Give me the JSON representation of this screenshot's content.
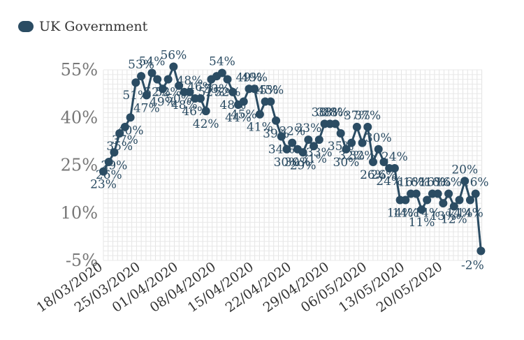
{
  "legend": {
    "label": "UK Government",
    "color": "#2b4c63"
  },
  "chart_data": {
    "type": "line",
    "title": "",
    "xlabel": "",
    "ylabel": "",
    "y_ticks": [
      {
        "value": 55,
        "label": "55%"
      },
      {
        "value": 40,
        "label": "40%"
      },
      {
        "value": 25,
        "label": "25%"
      },
      {
        "value": 10,
        "label": "10%"
      },
      {
        "value": -5,
        "label": "-5%"
      }
    ],
    "ylim": [
      -5,
      55
    ],
    "x_tick_labels": [
      "18/03/2020",
      "25/03/2020",
      "01/04/2020",
      "08/04/2020",
      "15/04/2020",
      "22/04/2020",
      "29/04/2020",
      "06/05/2020",
      "13/05/2020",
      "20/05/2020"
    ],
    "grid": true,
    "legend_position": "top-left",
    "series": [
      {
        "name": "UK Government",
        "color": "#2b4c63",
        "points": [
          {
            "x": "18/03/2020",
            "y": 23
          },
          {
            "x": "19/03/2020",
            "y": 26
          },
          {
            "x": "20/03/2020",
            "y": 29
          },
          {
            "x": "21/03/2020",
            "y": 35
          },
          {
            "x": "22/03/2020",
            "y": 37
          },
          {
            "x": "23/03/2020",
            "y": 40
          },
          {
            "x": "24/03/2020",
            "y": 51
          },
          {
            "x": "25/03/2020",
            "y": 53
          },
          {
            "x": "26/03/2020",
            "y": 47
          },
          {
            "x": "27/03/2020",
            "y": 54
          },
          {
            "x": "28/03/2020",
            "y": 52
          },
          {
            "x": "29/03/2020",
            "y": 49
          },
          {
            "x": "30/03/2020",
            "y": 52
          },
          {
            "x": "31/03/2020",
            "y": 56
          },
          {
            "x": "01/04/2020",
            "y": 50
          },
          {
            "x": "02/04/2020",
            "y": 48
          },
          {
            "x": "03/04/2020",
            "y": 48
          },
          {
            "x": "04/04/2020",
            "y": 46
          },
          {
            "x": "05/04/2020",
            "y": 46
          },
          {
            "x": "06/04/2020",
            "y": 42
          },
          {
            "x": "07/04/2020",
            "y": 52
          },
          {
            "x": "08/04/2020",
            "y": 53
          },
          {
            "x": "09/04/2020",
            "y": 54
          },
          {
            "x": "10/04/2020",
            "y": 52
          },
          {
            "x": "11/04/2020",
            "y": 48
          },
          {
            "x": "12/04/2020",
            "y": 44
          },
          {
            "x": "13/04/2020",
            "y": 45
          },
          {
            "x": "14/04/2020",
            "y": 49
          },
          {
            "x": "15/04/2020",
            "y": 49
          },
          {
            "x": "16/04/2020",
            "y": 41
          },
          {
            "x": "17/04/2020",
            "y": 45
          },
          {
            "x": "18/04/2020",
            "y": 45
          },
          {
            "x": "19/04/2020",
            "y": 39
          },
          {
            "x": "20/04/2020",
            "y": 34
          },
          {
            "x": "21/04/2020",
            "y": 30
          },
          {
            "x": "22/04/2020",
            "y": 32
          },
          {
            "x": "23/04/2020",
            "y": 30
          },
          {
            "x": "24/04/2020",
            "y": 29
          },
          {
            "x": "25/04/2020",
            "y": 33
          },
          {
            "x": "26/04/2020",
            "y": 31
          },
          {
            "x": "27/04/2020",
            "y": 33
          },
          {
            "x": "28/04/2020",
            "y": 38
          },
          {
            "x": "29/04/2020",
            "y": 38
          },
          {
            "x": "30/04/2020",
            "y": 38
          },
          {
            "x": "01/05/2020",
            "y": 35
          },
          {
            "x": "02/05/2020",
            "y": 30
          },
          {
            "x": "03/05/2020",
            "y": 32
          },
          {
            "x": "04/05/2020",
            "y": 37
          },
          {
            "x": "05/05/2020",
            "y": 32
          },
          {
            "x": "06/05/2020",
            "y": 37
          },
          {
            "x": "07/05/2020",
            "y": 26
          },
          {
            "x": "08/05/2020",
            "y": 30
          },
          {
            "x": "09/05/2020",
            "y": 26
          },
          {
            "x": "10/05/2020",
            "y": 24
          },
          {
            "x": "11/05/2020",
            "y": 24
          },
          {
            "x": "12/05/2020",
            "y": 14
          },
          {
            "x": "13/05/2020",
            "y": 14
          },
          {
            "x": "14/05/2020",
            "y": 16
          },
          {
            "x": "15/05/2020",
            "y": 16
          },
          {
            "x": "16/05/2020",
            "y": 11
          },
          {
            "x": "17/05/2020",
            "y": 14
          },
          {
            "x": "18/05/2020",
            "y": 16
          },
          {
            "x": "19/05/2020",
            "y": 16
          },
          {
            "x": "20/05/2020",
            "y": 13
          },
          {
            "x": "21/05/2020",
            "y": 16
          },
          {
            "x": "22/05/2020",
            "y": 12
          },
          {
            "x": "23/05/2020",
            "y": 14
          },
          {
            "x": "24/05/2020",
            "y": 20
          },
          {
            "x": "25/05/2020",
            "y": 14
          },
          {
            "x": "26/05/2020",
            "y": 16
          },
          {
            "x": "27/05/2020",
            "y": -2
          }
        ]
      }
    ]
  }
}
